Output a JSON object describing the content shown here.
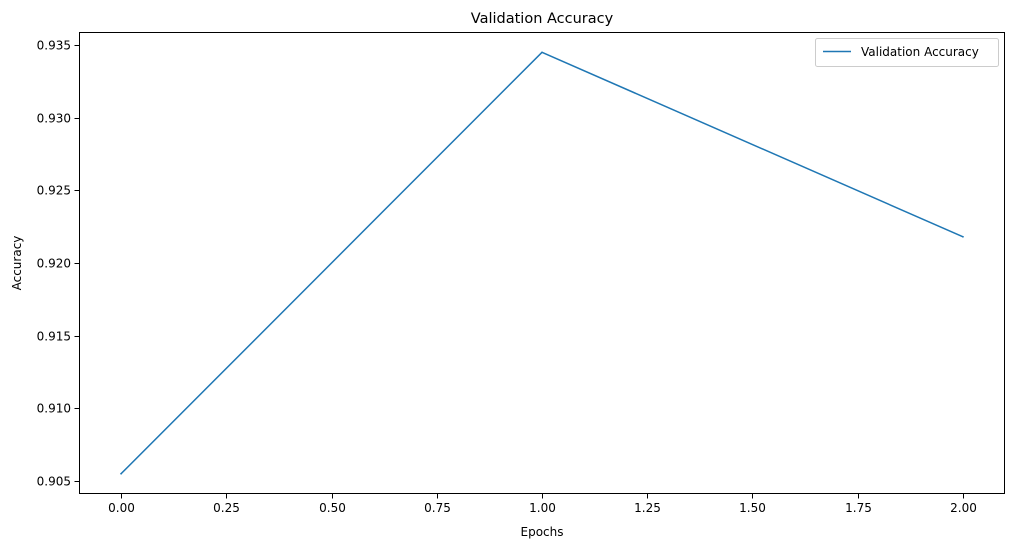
{
  "chart_data": {
    "type": "line",
    "title": "Validation Accuracy",
    "xlabel": "Epochs",
    "ylabel": "Accuracy",
    "xlim": [
      -0.1,
      2.1
    ],
    "ylim": [
      0.9041,
      0.9359
    ],
    "xticks": [
      0.0,
      0.25,
      0.5,
      0.75,
      1.0,
      1.25,
      1.5,
      1.75,
      2.0
    ],
    "xtick_labels": [
      "0.00",
      "0.25",
      "0.50",
      "0.75",
      "1.00",
      "1.25",
      "1.50",
      "1.75",
      "2.00"
    ],
    "yticks": [
      0.905,
      0.91,
      0.915,
      0.92,
      0.925,
      0.93,
      0.935
    ],
    "ytick_labels": [
      "0.905",
      "0.910",
      "0.915",
      "0.920",
      "0.925",
      "0.930",
      "0.935"
    ],
    "grid": false,
    "legend_position": "top-right",
    "series": [
      {
        "name": "Validation Accuracy",
        "color": "#1f77b4",
        "x": [
          0,
          1,
          2
        ],
        "y": [
          0.9055,
          0.9345,
          0.9218
        ]
      }
    ]
  }
}
